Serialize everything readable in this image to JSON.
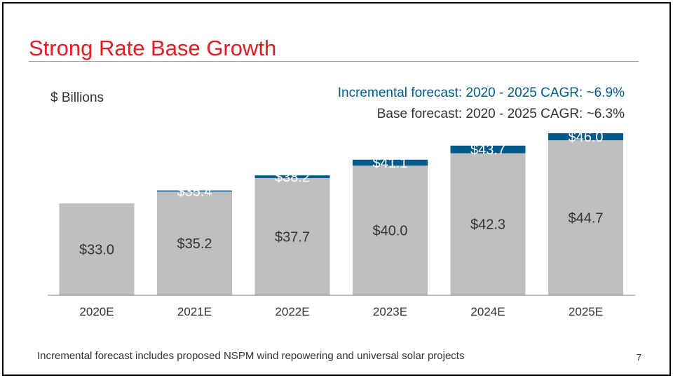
{
  "slide": {
    "title": "Strong Rate Base Growth",
    "unit_label": "$ Billions",
    "cagr_incremental": "Incremental forecast: 2020 - 2025 CAGR: ~6.9%",
    "cagr_base": "Base forecast: 2020 - 2025 CAGR: ~6.3%",
    "footnote": "Incremental forecast includes proposed NSPM wind repowering and universal solar projects",
    "page_number": "7"
  },
  "colors": {
    "title": "#e31b23",
    "base_bar": "#bfbfbf",
    "incremental_bar": "#005a8c",
    "incremental_text": "#005a8c",
    "text": "#333333"
  },
  "chart_data": {
    "type": "bar",
    "stacked": true,
    "categories": [
      "2020E",
      "2021E",
      "2022E",
      "2023E",
      "2024E",
      "2025E"
    ],
    "series": [
      {
        "values": [
          33.0,
          35.2,
          37.7,
          40.0,
          42.3,
          44.7
        ],
        "labels": [
          "$33.0",
          "$35.2",
          "$37.7",
          "$40.0",
          "$42.3",
          "$44.7"
        ],
        "color": "#bfbfbf"
      },
      {
        "totals": [
          null,
          35.4,
          38.2,
          41.1,
          43.7,
          46.0
        ],
        "labels": [
          null,
          "$35.4",
          "$38.2",
          "$41.1",
          "$43.7",
          "$46.0"
        ],
        "color": "#005a8c"
      }
    ],
    "ylim": [
      16,
      46.0
    ]
  }
}
